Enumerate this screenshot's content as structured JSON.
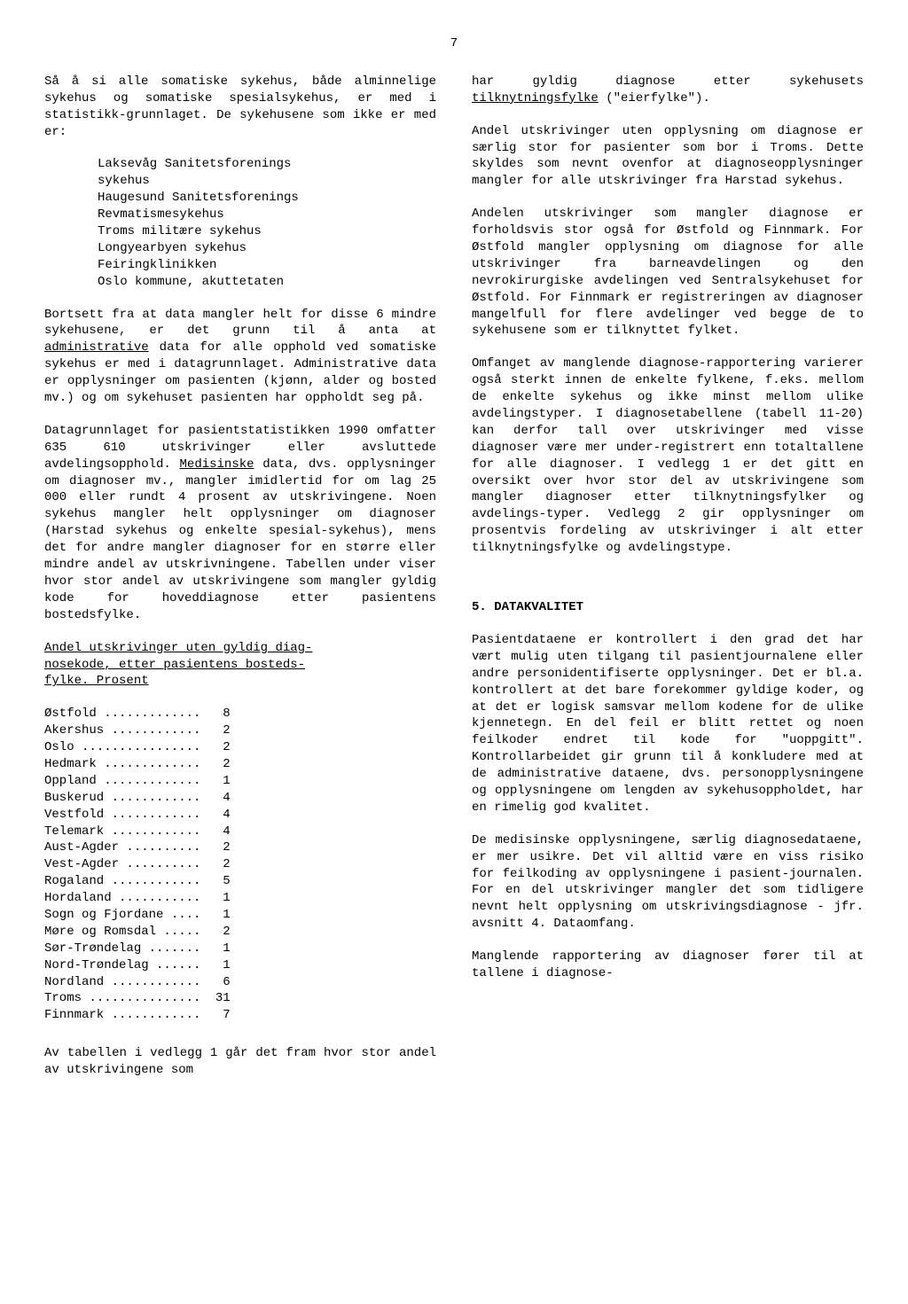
{
  "page_number": "7",
  "left": {
    "p1a": "Så å si alle somatiske sykehus, både alminnelige sykehus og somatiske spesialsykehus, er med i statistikk-grunnlaget. De sykehusene som ikke er med er:",
    "hospitals": [
      "Laksevåg Sanitetsforenings",
      "sykehus",
      "Haugesund Sanitetsforenings",
      "Revmatismesykehus",
      "Troms militære sykehus",
      "Longyearbyen sykehus",
      "Feiringklinikken",
      "Oslo kommune, akuttetaten"
    ],
    "p2_pre": "Bortsett fra at data mangler helt for disse 6 mindre sykehusene, er det grunn til å anta at ",
    "p2_underlined": "administrative",
    "p2_post": " data for alle opphold ved somatiske sykehus er med i datagrunnlaget. Administrative data er opplysninger om pasienten (kjønn, alder og bosted mv.) og om sykehuset pasienten har oppholdt seg på.",
    "p3_pre": "Datagrunnlaget for pasientstatistikken 1990 omfatter 635 610 utskrivinger eller avsluttede avdelingsopphold. ",
    "p3_underlined": "Medisinske",
    "p3_post": " data, dvs. opplysninger om diagnoser mv., mangler imidlertid for om lag 25 000 eller rundt 4 prosent av utskrivingene. Noen sykehus mangler helt opplysninger om diagnoser (Harstad sykehus og enkelte spesial-sykehus), mens det for andre mangler diagnoser for en større eller mindre andel av utskrivningene. Tabellen under viser hvor stor andel av utskrivingene som mangler gyldig kode for hoveddiagnose etter pasientens bostedsfylke.",
    "table_title_u1": "Andel utskrivinger uten gyldig diag-",
    "table_title_u2": "nosekode, etter pasientens bosteds-",
    "table_title_u3": "fylke. Prosent",
    "table": [
      {
        "label": "Østfold",
        "value": "8"
      },
      {
        "label": "Akershus",
        "value": "2"
      },
      {
        "label": "Oslo",
        "value": "2"
      },
      {
        "label": "Hedmark",
        "value": "2"
      },
      {
        "label": "Oppland",
        "value": "1"
      },
      {
        "label": "Buskerud",
        "value": "4"
      },
      {
        "label": "Vestfold",
        "value": "4"
      },
      {
        "label": "Telemark",
        "value": "4"
      },
      {
        "label": "Aust-Agder",
        "value": "2"
      },
      {
        "label": "Vest-Agder",
        "value": "2"
      },
      {
        "label": "Rogaland",
        "value": "5"
      },
      {
        "label": "Hordaland",
        "value": "1"
      },
      {
        "label": "Sogn og Fjordane",
        "value": "1"
      },
      {
        "label": "Møre og Romsdal",
        "value": "2"
      },
      {
        "label": "Sør-Trøndelag",
        "value": "1"
      },
      {
        "label": "Nord-Trøndelag",
        "value": "1"
      },
      {
        "label": "Nordland",
        "value": "6"
      },
      {
        "label": "Troms",
        "value": "31"
      },
      {
        "label": "Finnmark",
        "value": "7"
      }
    ],
    "p4": "Av tabellen i vedlegg 1 går det fram hvor stor andel av utskrivingene som"
  },
  "right": {
    "p1_pre": "har gyldig diagnose etter sykehusets ",
    "p1_underlined": "tilknytningsfylke",
    "p1_post": " (\"eierfylke\").",
    "p2": "Andel utskrivinger uten opplysning om diagnose er særlig stor for pasienter som bor i Troms. Dette skyldes som nevnt ovenfor at diagnoseopplysninger mangler for alle utskrivinger fra Harstad sykehus.",
    "p3": "Andelen utskrivinger som mangler diagnose er forholdsvis stor også for Østfold og Finnmark. For Østfold mangler opplysning om diagnose for alle utskrivinger fra barneavdelingen og den nevrokirurgiske avdelingen ved Sentralsykehuset for Østfold. For Finnmark er registreringen av diagnoser mangelfull for flere avdelinger ved begge de to sykehusene som er tilknyttet fylket.",
    "p4": "Omfanget av manglende diagnose-rapportering varierer også sterkt innen de enkelte fylkene, f.eks. mellom de enkelte sykehus og ikke minst mellom ulike avdelingstyper. I diagnosetabellene (tabell 11-20) kan derfor tall over utskrivinger med visse diagnoser være mer under-registrert enn totaltallene for alle diagnoser. I vedlegg 1 er det gitt en oversikt over hvor stor del av utskrivingene som mangler diagnoser etter tilknytningsfylker og avdelings-typer. Vedlegg 2 gir opplysninger om prosentvis fordeling av utskrivinger i alt etter tilknytningsfylke og avdelingstype.",
    "section_num": "5.",
    "section_title": "DATAKVALITET",
    "p5": "Pasientdataene er kontrollert i den grad det har vært mulig uten tilgang til pasientjournalene eller andre personidentifiserte opplysninger. Det er bl.a. kontrollert at det bare forekommer gyldige koder, og at det er logisk samsvar mellom kodene for de ulike kjennetegn. En del feil er blitt rettet og noen feilkoder endret til kode for \"uoppgitt\". Kontrollarbeidet gir grunn til å konkludere med at de administrative dataene, dvs. personopplysningene og opplysningene om lengden av sykehusoppholdet, har en rimelig god kvalitet.",
    "p6": "De medisinske opplysningene, særlig diagnosedataene, er mer usikre. Det vil alltid være en viss risiko for feilkoding av opplysningene i pasient-journalen. For en del utskrivinger mangler det som tidligere nevnt helt opplysning om utskrivingsdiagnose - jfr. avsnitt 4. Dataomfang.",
    "p7": "Manglende rapportering av diagnoser fører til at tallene i diagnose-"
  }
}
